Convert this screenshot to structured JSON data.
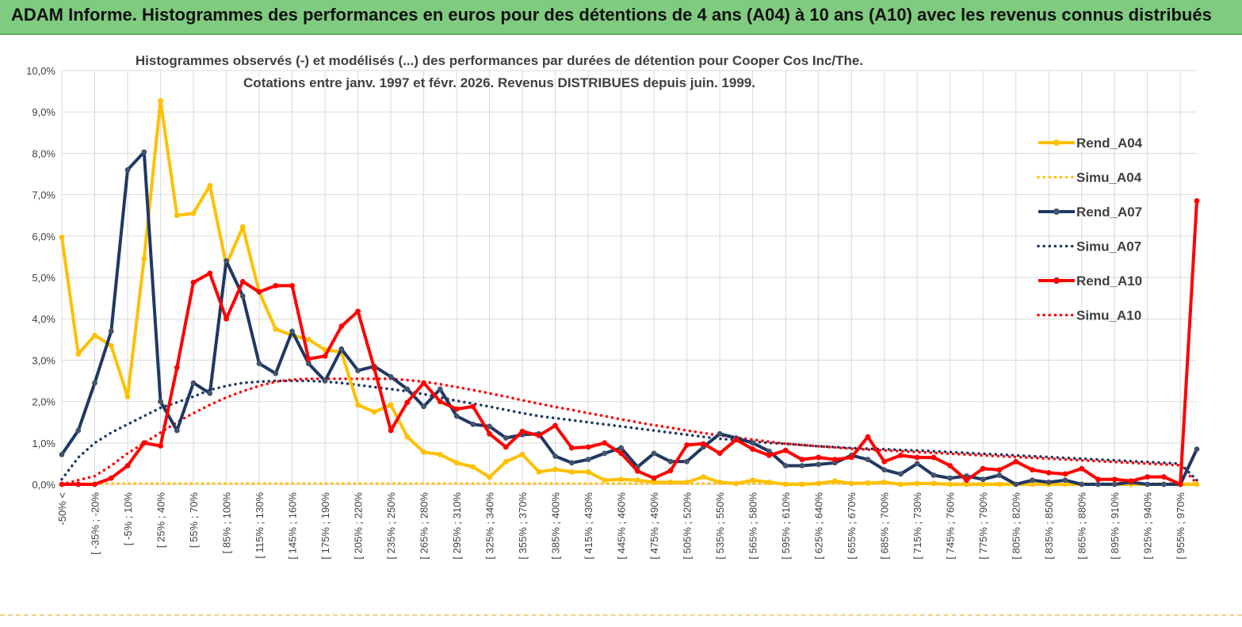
{
  "header": {
    "title": "ADAM Informe. Histogrammes des performances en euros pour des détentions de 4 ans (A04) à 10 ans (A10) avec les revenus connus distribués"
  },
  "colors": {
    "header_bg": "#7fcb7f",
    "a04": "#ffc000",
    "a07": "#1f3864",
    "a07_markers": "#44546a",
    "a10": "#ff0000",
    "grid": "#d9d9d9"
  },
  "chart_data": {
    "type": "line",
    "title": "Histogrammes observés (-) et modélisés (...) des performances par durées de détention pour Cooper Cos Inc/The.",
    "subtitle": "Cotations entre janv. 1997 et févr. 2026. Revenus DISTRIBUES depuis juin. 1999.",
    "y_ticks": [
      "0,0%",
      "1,0%",
      "2,0%",
      "3,0%",
      "4,0%",
      "5,0%",
      "6,0%",
      "7,0%",
      "8,0%",
      "9,0%",
      "10,0%"
    ],
    "ylim": [
      0,
      10
    ],
    "x_count": 70,
    "x_tick_labels": [
      {
        "i": 0,
        "label": "-50% <"
      },
      {
        "i": 2,
        "label": "[ -35% ; -20%"
      },
      {
        "i": 4,
        "label": "[ -5% ; 10%"
      },
      {
        "i": 6,
        "label": "[ 25% ; 40%"
      },
      {
        "i": 8,
        "label": "[ 55% ; 70%"
      },
      {
        "i": 10,
        "label": "[ 85% ; 100%"
      },
      {
        "i": 12,
        "label": "[ 115% ; 130%"
      },
      {
        "i": 14,
        "label": "[ 145% ; 160%"
      },
      {
        "i": 16,
        "label": "[ 175% ; 190%"
      },
      {
        "i": 18,
        "label": "[ 205% ; 220%"
      },
      {
        "i": 20,
        "label": "[ 235% ; 250%"
      },
      {
        "i": 22,
        "label": "[ 265% ; 280%"
      },
      {
        "i": 24,
        "label": "[ 295% ; 310%"
      },
      {
        "i": 26,
        "label": "[ 325% ; 340%"
      },
      {
        "i": 28,
        "label": "[ 355% ; 370%"
      },
      {
        "i": 30,
        "label": "[ 385% ; 400%"
      },
      {
        "i": 32,
        "label": "[ 415% ; 430%"
      },
      {
        "i": 34,
        "label": "[ 445% ; 460%"
      },
      {
        "i": 36,
        "label": "[ 475% ; 490%"
      },
      {
        "i": 38,
        "label": "[ 505% ; 520%"
      },
      {
        "i": 40,
        "label": "[ 535% ; 550%"
      },
      {
        "i": 42,
        "label": "[ 565% ; 580%"
      },
      {
        "i": 44,
        "label": "[ 595% ; 610%"
      },
      {
        "i": 46,
        "label": "[ 625% ; 640%"
      },
      {
        "i": 48,
        "label": "[ 655% ; 670%"
      },
      {
        "i": 50,
        "label": "[ 685% ; 700%"
      },
      {
        "i": 52,
        "label": "[ 715% ; 730%"
      },
      {
        "i": 54,
        "label": "[ 745% ; 760%"
      },
      {
        "i": 56,
        "label": "[ 775% ; 790%"
      },
      {
        "i": 58,
        "label": "[ 805% ; 820%"
      },
      {
        "i": 60,
        "label": "[ 835% ; 850%"
      },
      {
        "i": 62,
        "label": "[ 865% ; 880%"
      },
      {
        "i": 64,
        "label": "[ 895% ; 910%"
      },
      {
        "i": 66,
        "label": "[ 925% ; 940%"
      },
      {
        "i": 68,
        "label": "[ 955% ; 970%"
      }
    ],
    "series": [
      {
        "name": "Rend_A04",
        "style": "solid",
        "color": "#ffc000",
        "marker": "#ffc000",
        "values": [
          5.97,
          3.15,
          3.6,
          3.35,
          2.12,
          5.45,
          9.27,
          6.5,
          6.55,
          7.22,
          5.3,
          6.22,
          4.65,
          3.75,
          3.6,
          3.5,
          3.25,
          3.2,
          1.92,
          1.75,
          1.92,
          1.15,
          0.78,
          0.72,
          0.52,
          0.42,
          0.17,
          0.55,
          0.72,
          0.3,
          0.36,
          0.3,
          0.3,
          0.1,
          0.12,
          0.1,
          0.05,
          0.05,
          0.05,
          0.18,
          0.05,
          0.02,
          0.1,
          0.05,
          0.0,
          0.0,
          0.02,
          0.08,
          0.02,
          0.03,
          0.05,
          0.0,
          0.02,
          0.02,
          0.0,
          0.0,
          0.0,
          0.0,
          0.0,
          0.0,
          0.0,
          0.0,
          0.0,
          0.0,
          0.0,
          0.0,
          0.0,
          0.0,
          0.0,
          0.0
        ]
      },
      {
        "name": "Simu_A04",
        "style": "dotted",
        "color": "#ffc000",
        "values": [
          0.02,
          0.02,
          0.02,
          0.02,
          0.02,
          0.02,
          0.02,
          0.02,
          0.02,
          0.02,
          0.02,
          0.02,
          0.02,
          0.02,
          0.02,
          0.02,
          0.02,
          0.02,
          0.02,
          0.02,
          0.02,
          0.02,
          0.02,
          0.02,
          0.02,
          0.02,
          0.02,
          0.02,
          0.02,
          0.02,
          0.02,
          0.02,
          0.02,
          0.02,
          0.02,
          0.02,
          0.02,
          0.02,
          0.02,
          0.02,
          0.02,
          0.02,
          0.02,
          0.02,
          0.02,
          0.02,
          0.02,
          0.02,
          0.02,
          0.02,
          0.02,
          0.02,
          0.02,
          0.02,
          0.02,
          0.02,
          0.02,
          0.02,
          0.02,
          0.02,
          0.02,
          0.02,
          0.02,
          0.02,
          0.02,
          0.02,
          0.02,
          0.02,
          0.02,
          0.02
        ]
      },
      {
        "name": "Rend_A07",
        "style": "solid",
        "color": "#1f3864",
        "marker": "#44546a",
        "values": [
          0.72,
          1.3,
          2.45,
          3.7,
          7.6,
          8.03,
          2.0,
          1.3,
          2.45,
          2.2,
          5.4,
          4.55,
          2.92,
          2.68,
          3.7,
          2.92,
          2.5,
          3.27,
          2.75,
          2.85,
          2.6,
          2.3,
          1.88,
          2.3,
          1.65,
          1.45,
          1.4,
          1.12,
          1.2,
          1.22,
          0.68,
          0.52,
          0.6,
          0.75,
          0.88,
          0.42,
          0.75,
          0.55,
          0.55,
          0.9,
          1.22,
          1.12,
          1.0,
          0.8,
          0.45,
          0.45,
          0.48,
          0.52,
          0.7,
          0.6,
          0.35,
          0.25,
          0.5,
          0.22,
          0.15,
          0.2,
          0.12,
          0.22,
          0.0,
          0.1,
          0.05,
          0.1,
          0.0,
          0.0,
          0.0,
          0.05,
          0.0,
          0.0,
          0.0,
          0.85
        ]
      },
      {
        "name": "Simu_A07",
        "style": "dotted",
        "color": "#1f3864",
        "values": [
          0.12,
          0.65,
          1.0,
          1.25,
          1.45,
          1.65,
          1.85,
          1.98,
          2.12,
          2.28,
          2.38,
          2.45,
          2.48,
          2.5,
          2.5,
          2.5,
          2.48,
          2.45,
          2.4,
          2.35,
          2.3,
          2.25,
          2.18,
          2.1,
          2.02,
          1.95,
          1.88,
          1.8,
          1.72,
          1.65,
          1.6,
          1.55,
          1.5,
          1.45,
          1.4,
          1.35,
          1.3,
          1.25,
          1.2,
          1.15,
          1.1,
          1.07,
          1.03,
          1.0,
          0.98,
          0.95,
          0.92,
          0.9,
          0.88,
          0.86,
          0.85,
          0.83,
          0.82,
          0.8,
          0.78,
          0.76,
          0.74,
          0.72,
          0.7,
          0.68,
          0.66,
          0.64,
          0.62,
          0.6,
          0.58,
          0.56,
          0.54,
          0.52,
          0.5,
          0.1
        ]
      },
      {
        "name": "Rend_A10",
        "style": "solid",
        "color": "#ff0000",
        "marker": "#ff0000",
        "values": [
          0.0,
          0.0,
          0.0,
          0.15,
          0.45,
          1.0,
          0.93,
          2.82,
          4.88,
          5.1,
          4.0,
          4.9,
          4.65,
          4.8,
          4.8,
          3.03,
          3.1,
          3.82,
          4.18,
          2.8,
          1.3,
          1.98,
          2.45,
          2.0,
          1.82,
          1.88,
          1.22,
          0.9,
          1.28,
          1.18,
          1.42,
          0.88,
          0.9,
          1.0,
          0.75,
          0.32,
          0.15,
          0.33,
          0.95,
          0.98,
          0.75,
          1.08,
          0.85,
          0.7,
          0.82,
          0.6,
          0.65,
          0.6,
          0.65,
          1.15,
          0.55,
          0.7,
          0.65,
          0.65,
          0.45,
          0.1,
          0.38,
          0.35,
          0.55,
          0.35,
          0.28,
          0.25,
          0.38,
          0.12,
          0.12,
          0.08,
          0.18,
          0.18,
          0.0,
          6.85
        ]
      },
      {
        "name": "Simu_A10",
        "style": "dotted",
        "color": "#ff0000",
        "values": [
          0.0,
          0.1,
          0.2,
          0.45,
          0.75,
          1.0,
          1.25,
          1.5,
          1.72,
          1.92,
          2.1,
          2.25,
          2.38,
          2.48,
          2.53,
          2.55,
          2.55,
          2.55,
          2.55,
          2.55,
          2.55,
          2.52,
          2.48,
          2.42,
          2.35,
          2.28,
          2.2,
          2.12,
          2.03,
          1.95,
          1.87,
          1.8,
          1.72,
          1.65,
          1.57,
          1.5,
          1.43,
          1.37,
          1.3,
          1.24,
          1.18,
          1.13,
          1.08,
          1.03,
          0.98,
          0.95,
          0.92,
          0.89,
          0.86,
          0.84,
          0.82,
          0.8,
          0.78,
          0.76,
          0.74,
          0.72,
          0.7,
          0.68,
          0.66,
          0.64,
          0.62,
          0.6,
          0.58,
          0.56,
          0.54,
          0.52,
          0.5,
          0.48,
          0.46,
          0.02
        ]
      }
    ],
    "legend_position": "right"
  }
}
